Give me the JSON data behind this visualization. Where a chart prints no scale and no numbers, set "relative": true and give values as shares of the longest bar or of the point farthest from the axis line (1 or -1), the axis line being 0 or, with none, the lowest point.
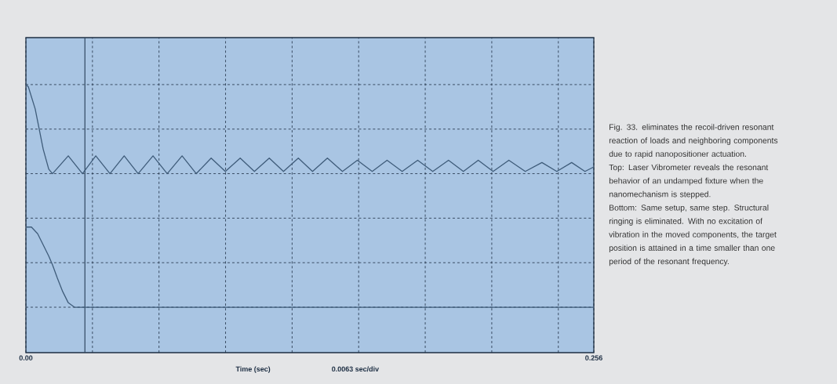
{
  "chart_data": {
    "type": "line",
    "relative": true,
    "xlabel": "Time (sec)",
    "xlim": [
      0,
      0.256
    ],
    "xticks": [
      {
        "value": 0,
        "label": "0.00"
      },
      {
        "value": 0.03,
        "label": null
      },
      {
        "value": 0.06,
        "label": null
      },
      {
        "value": 0.09,
        "label": null
      },
      {
        "value": 0.12,
        "label": null
      },
      {
        "value": 0.15,
        "label": null
      },
      {
        "value": 0.18,
        "label": null
      },
      {
        "value": 0.21,
        "label": null
      },
      {
        "value": 0.24,
        "label": null
      },
      0.256
    ],
    "grid": true,
    "line_style": "solid",
    "marker": "none",
    "series": [
      {
        "color": "#3f5c7a",
        "x": [
          0,
          0.0011,
          0.0042,
          0.0078,
          0.0103,
          0.012,
          0.0191,
          0.0255,
          0.0315,
          0.0379,
          0.0443,
          0.0506,
          0.0573,
          0.0637,
          0.0704,
          0.0768,
          0.0835,
          0.0899,
          0.0966,
          0.103,
          0.1097,
          0.1161,
          0.1228,
          0.1292,
          0.1359,
          0.1427,
          0.1494,
          0.1561,
          0.1628,
          0.1696,
          0.1766,
          0.1834,
          0.1905,
          0.1972,
          0.2039,
          0.2106,
          0.2177,
          0.2251,
          0.2326,
          0.2393,
          0.246,
          0.252,
          0.256
        ],
        "values": [
          1.0,
          0.99,
          0.89,
          0.71,
          0.62,
          0.6,
          0.68,
          0.6,
          0.68,
          0.6,
          0.68,
          0.6,
          0.68,
          0.6,
          0.68,
          0.6,
          0.67,
          0.61,
          0.67,
          0.61,
          0.67,
          0.61,
          0.67,
          0.61,
          0.67,
          0.61,
          0.66,
          0.61,
          0.66,
          0.61,
          0.66,
          0.61,
          0.66,
          0.61,
          0.66,
          0.61,
          0.66,
          0.61,
          0.65,
          0.61,
          0.65,
          0.61,
          0.63
        ]
      },
      {
        "color": "#3f5c7a",
        "x": [
          0,
          0.0025,
          0.0053,
          0.0078,
          0.0103,
          0.012,
          0.0142,
          0.0166,
          0.0191,
          0.0219,
          0.256
        ],
        "values": [
          0.36,
          0.36,
          0.33,
          0.28,
          0.23,
          0.19,
          0.13,
          0.07,
          0.02,
          0.0,
          0.0
        ]
      }
    ],
    "ref_lines": [
      {
        "axis": "x",
        "value": 0.0266,
        "color": "#2f4760"
      }
    ],
    "annotations": [
      "0.0063 sec/div",
      "Fig. 33. eliminates the recoil-driven resonant reaction of loads and neighboring components due to rapid nanopositioner actuation.",
      "Top: Laser Vibrometer reveals the resonant behavior of an undamped fixture when the nanomechanism is stepped.",
      "Bottom: Same setup, same step. Structural ringing is eliminated. With no excitation of vibration in the moved components, the target position is attained in a time smaller than one period of the resonant frequency."
    ]
  }
}
